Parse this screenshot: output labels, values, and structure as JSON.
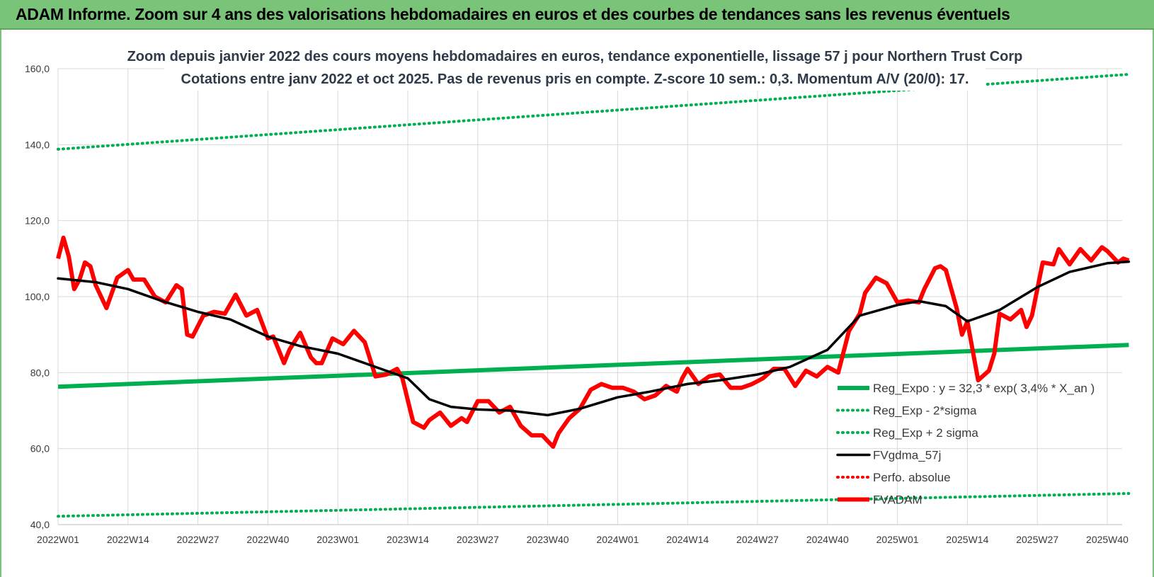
{
  "header": {
    "title": "ADAM Informe. Zoom sur 4 ans des valorisations hebdomadaires en euros et des courbes de tendances sans les revenus éventuels"
  },
  "chart_data": {
    "type": "line",
    "title": "Zoom depuis janvier 2022 des cours moyens hebdomadaires en euros, tendance exponentielle, lissage 57 j pour Northern Trust Corp",
    "subtitle": "Cotations entre janv 2022 et oct 2025. Pas de revenus pris en compte. Z-score 10 sem.: 0,3. Momentum A/V (20/0): 17.",
    "xlabel": "",
    "ylabel": "",
    "ylim": [
      40,
      160
    ],
    "yticks": [
      "40,0",
      "60,0",
      "80,0",
      "100,0",
      "120,0",
      "140,0",
      "160,0"
    ],
    "xticks": [
      "2022W01",
      "2022W14",
      "2022W27",
      "2022W40",
      "2023W01",
      "2023W14",
      "2023W27",
      "2023W40",
      "2024W01",
      "2024W14",
      "2024W27",
      "2024W40",
      "2025W01",
      "2025W14",
      "2025W27",
      "2025W40"
    ],
    "grid": true,
    "legend_position": "bottom-right",
    "series": [
      {
        "name": "Reg_Expo : y = 32,3 * exp( 3,4% * X_an )",
        "color": "#00b050",
        "style": "solid-thick",
        "x": [
          "2022W01",
          "2025W44"
        ],
        "values": [
          76.3,
          87.3
        ]
      },
      {
        "name": "Reg_Exp - 2*sigma",
        "color": "#00b050",
        "style": "dotted",
        "x": [
          "2022W01",
          "2025W44"
        ],
        "values": [
          42.2,
          48.2
        ]
      },
      {
        "name": "Reg_Exp + 2 sigma",
        "color": "#00b050",
        "style": "dotted",
        "x": [
          "2022W01",
          "2025W44"
        ],
        "values": [
          138.8,
          158.5
        ]
      },
      {
        "name": "FVgdma_57j",
        "color": "#000000",
        "style": "solid",
        "x": [
          "2022W01",
          "2022W08",
          "2022W14",
          "2022W20",
          "2022W27",
          "2022W33",
          "2022W40",
          "2022W46",
          "2023W01",
          "2023W07",
          "2023W14",
          "2023W18",
          "2023W22",
          "2023W27",
          "2023W33",
          "2023W40",
          "2023W46",
          "2024W01",
          "2024W07",
          "2024W14",
          "2024W20",
          "2024W27",
          "2024W33",
          "2024W40",
          "2024W46",
          "2025W01",
          "2025W05",
          "2025W10",
          "2025W14",
          "2025W20",
          "2025W27",
          "2025W33",
          "2025W40",
          "2025W44"
        ],
        "values": [
          104.8,
          103.8,
          102.0,
          99.0,
          96.0,
          94.0,
          89.5,
          87.0,
          85.0,
          82.0,
          78.5,
          73.0,
          71.0,
          70.3,
          70.0,
          68.8,
          70.5,
          73.5,
          75.0,
          77.0,
          78.0,
          79.5,
          81.5,
          86.0,
          95.0,
          97.8,
          98.8,
          97.5,
          93.5,
          96.5,
          102.5,
          106.5,
          108.8,
          109.2
        ]
      },
      {
        "name": "Perfo. absolue",
        "color": "#ff0000",
        "style": "dotted",
        "x": [],
        "values": []
      },
      {
        "name": "FVADAM",
        "color": "#ff0000",
        "style": "solid-thick",
        "x": [
          "2022W01",
          "2022W02",
          "2022W03",
          "2022W04",
          "2022W05",
          "2022W06",
          "2022W07",
          "2022W08",
          "2022W10",
          "2022W12",
          "2022W14",
          "2022W15",
          "2022W17",
          "2022W19",
          "2022W21",
          "2022W23",
          "2022W24",
          "2022W25",
          "2022W26",
          "2022W28",
          "2022W30",
          "2022W32",
          "2022W34",
          "2022W36",
          "2022W38",
          "2022W40",
          "2022W41",
          "2022W42",
          "2022W43",
          "2022W44",
          "2022W46",
          "2022W48",
          "2022W49",
          "2022W50",
          "2022W52",
          "2023W02",
          "2023W04",
          "2023W06",
          "2023W08",
          "2023W10",
          "2023W12",
          "2023W13",
          "2023W15",
          "2023W17",
          "2023W18",
          "2023W20",
          "2023W22",
          "2023W24",
          "2023W25",
          "2023W27",
          "2023W29",
          "2023W31",
          "2023W33",
          "2023W35",
          "2023W37",
          "2023W39",
          "2023W41",
          "2023W42",
          "2023W44",
          "2023W46",
          "2023W48",
          "2023W50",
          "2023W52",
          "2024W02",
          "2024W04",
          "2024W06",
          "2024W08",
          "2024W10",
          "2024W12",
          "2024W13",
          "2024W14",
          "2024W16",
          "2024W18",
          "2024W20",
          "2024W22",
          "2024W24",
          "2024W26",
          "2024W28",
          "2024W30",
          "2024W32",
          "2024W34",
          "2024W36",
          "2024W38",
          "2024W40",
          "2024W42",
          "2024W44",
          "2024W46",
          "2024W47",
          "2024W49",
          "2024W51",
          "2025W01",
          "2025W03",
          "2025W05",
          "2025W06",
          "2025W08",
          "2025W09",
          "2025W10",
          "2025W12",
          "2025W13",
          "2025W14",
          "2025W16",
          "2025W18",
          "2025W19",
          "2025W20",
          "2025W22",
          "2025W24",
          "2025W25",
          "2025W26",
          "2025W28",
          "2025W30",
          "2025W31",
          "2025W33",
          "2025W35",
          "2025W37",
          "2025W39",
          "2025W40",
          "2025W42",
          "2025W43",
          "2025W44"
        ],
        "values": [
          110.0,
          115.5,
          110.5,
          102.0,
          104.5,
          109.0,
          108.0,
          103.0,
          97.0,
          105.0,
          107.0,
          104.5,
          104.5,
          100.0,
          98.5,
          103.0,
          102.0,
          90.0,
          89.5,
          95.0,
          96.0,
          95.5,
          100.5,
          95.0,
          96.5,
          89.0,
          89.5,
          86.0,
          82.5,
          86.0,
          90.5,
          84.0,
          82.5,
          82.5,
          89.0,
          87.5,
          91.0,
          88.0,
          79.0,
          79.5,
          81.0,
          78.5,
          67.0,
          65.5,
          67.5,
          69.5,
          66.0,
          68.0,
          67.0,
          72.5,
          72.5,
          69.5,
          71.0,
          66.0,
          63.5,
          63.5,
          60.5,
          64.0,
          68.0,
          70.5,
          75.5,
          77.0,
          76.0,
          76.0,
          75.0,
          73.0,
          74.0,
          76.5,
          75.0,
          78.5,
          81.0,
          77.0,
          79.0,
          79.5,
          76.0,
          76.0,
          77.0,
          78.5,
          81.0,
          81.0,
          76.5,
          80.5,
          79.0,
          81.5,
          80.0,
          91.0,
          95.5,
          101.0,
          105.0,
          103.5,
          98.5,
          99.0,
          98.5,
          102.0,
          107.5,
          108.0,
          107.0,
          97.0,
          90.0,
          93.5,
          78.0,
          80.5,
          85.0,
          95.5,
          94.0,
          96.5,
          92.0,
          95.0,
          109.0,
          108.5,
          112.5,
          108.5,
          112.5,
          109.5,
          113.0,
          112.0,
          109.0,
          110.0,
          109.5
        ]
      }
    ]
  }
}
